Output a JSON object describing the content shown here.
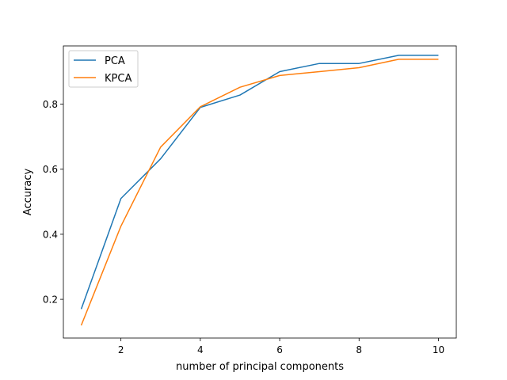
{
  "chart_data": {
    "type": "line",
    "title": "",
    "xlabel": "number of principal components",
    "ylabel": "Accuracy",
    "xlim": [
      0.55,
      10.45
    ],
    "ylim": [
      0.081,
      0.979
    ],
    "xticks": [
      2,
      4,
      6,
      8,
      10
    ],
    "yticks": [
      0.2,
      0.4,
      0.6,
      0.8
    ],
    "ytick_labels": [
      "0.2",
      "0.4",
      "0.6",
      "0.8"
    ],
    "grid": false,
    "legend_position": "top-left",
    "x": [
      1,
      2,
      3,
      4,
      5,
      6,
      7,
      8,
      9,
      10
    ],
    "series": [
      {
        "name": "PCA",
        "color": "#1f77b4",
        "values": [
          0.17,
          0.51,
          0.632,
          0.79,
          0.828,
          0.9,
          0.925,
          0.925,
          0.95,
          0.95
        ]
      },
      {
        "name": "KPCA",
        "color": "#ff7f0e",
        "values": [
          0.12,
          0.425,
          0.668,
          0.792,
          0.852,
          0.888,
          0.9,
          0.912,
          0.938,
          0.938
        ]
      }
    ]
  }
}
